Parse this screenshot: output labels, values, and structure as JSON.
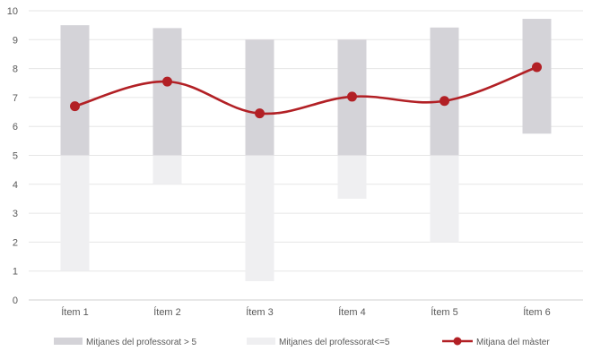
{
  "chart_data": {
    "type": "bar",
    "categories": [
      "Ítem 1",
      "Ítem 2",
      "Ítem 3",
      "Ítem 4",
      "Ítem 5",
      "Ítem 6"
    ],
    "series": [
      {
        "name": "Mitjanes del professorat > 5",
        "kind": "floating-bar",
        "low": [
          5,
          5,
          5,
          5,
          5,
          5.75
        ],
        "high": [
          9.5,
          9.4,
          9.0,
          9.0,
          9.42,
          9.72
        ],
        "color": "#d4d3d8"
      },
      {
        "name": "Mitjanes del professorat<=5",
        "kind": "floating-bar",
        "low": [
          1.0,
          4.0,
          0.65,
          3.5,
          2.0,
          null
        ],
        "high": [
          5,
          5,
          5,
          5,
          5,
          null
        ],
        "color": "#efeff1"
      },
      {
        "name": "Mitjana del màster",
        "kind": "smooth-line",
        "values": [
          6.7,
          7.55,
          6.45,
          7.03,
          6.88,
          8.05
        ],
        "color": "#b22025"
      }
    ],
    "y_ticks": [
      "0",
      "1",
      "2",
      "3",
      "4",
      "5",
      "6",
      "7",
      "8",
      "9",
      "10"
    ],
    "ylim": [
      0,
      10
    ],
    "grid": "horizontal",
    "legend": "bottom",
    "title": "",
    "xlabel": "",
    "ylabel": ""
  }
}
